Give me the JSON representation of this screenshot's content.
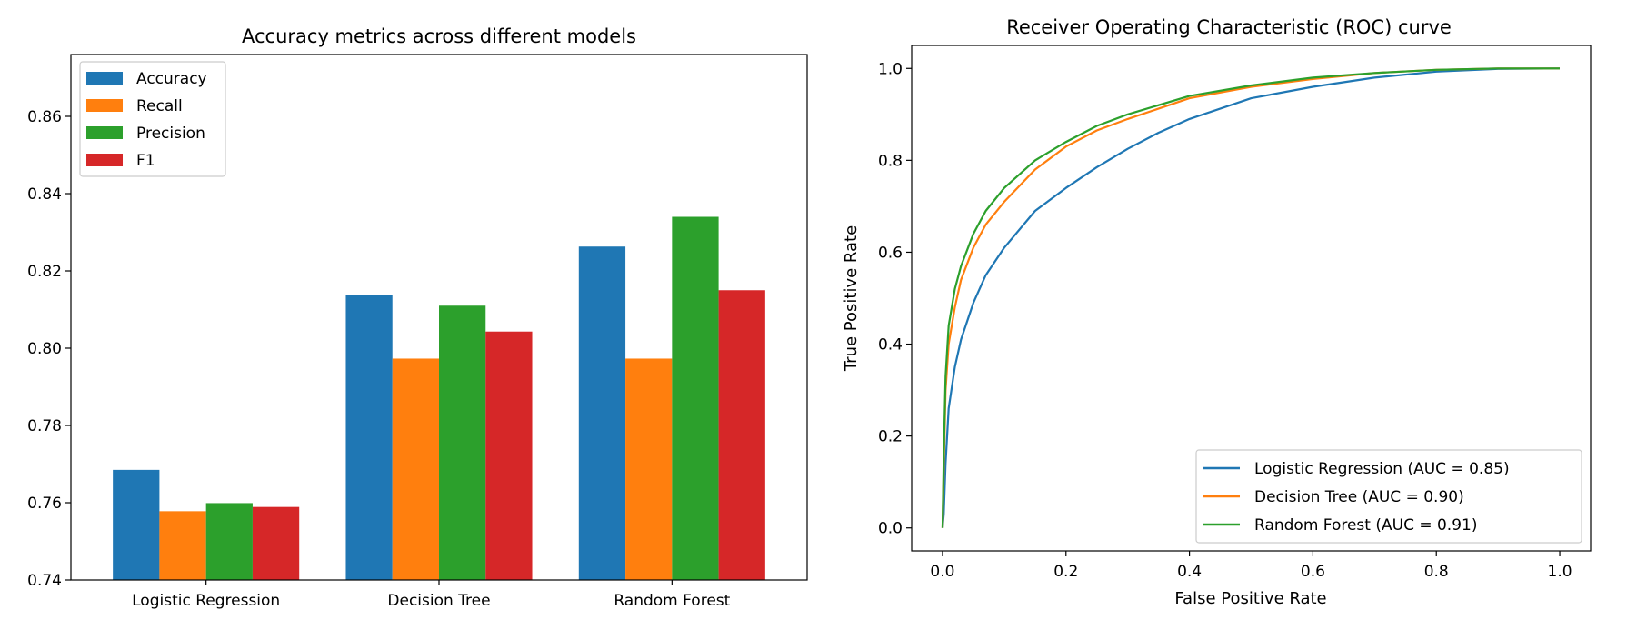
{
  "colors": {
    "blue": "#1f77b4",
    "orange": "#ff7f0e",
    "green": "#2ca02c",
    "red": "#d62728"
  },
  "chart_data": [
    {
      "type": "bar",
      "title": "Accuracy metrics across different models",
      "xlabel": "",
      "ylabel": "",
      "categories": [
        "Logistic Regression",
        "Decision Tree",
        "Random Forest"
      ],
      "ylim": [
        0.74,
        0.876
      ],
      "yticks": [
        "0.74",
        "0.76",
        "0.78",
        "0.80",
        "0.82",
        "0.84",
        "0.86"
      ],
      "grid": false,
      "legend_position": "top-left",
      "series": [
        {
          "name": "Accuracy",
          "color": "#1f77b4",
          "values": [
            0.7685,
            0.8137,
            0.8263
          ]
        },
        {
          "name": "Recall",
          "color": "#ff7f0e",
          "values": [
            0.7578,
            0.7973,
            0.7973
          ]
        },
        {
          "name": "Precision",
          "color": "#2ca02c",
          "values": [
            0.7599,
            0.811,
            0.834
          ]
        },
        {
          "name": "F1",
          "color": "#d62728",
          "values": [
            0.7589,
            0.8043,
            0.815
          ]
        }
      ]
    },
    {
      "type": "line",
      "title": "Receiver Operating Characteristic (ROC) curve",
      "xlabel": "False Positive Rate",
      "ylabel": "True Positive Rate",
      "xlim": [
        -0.05,
        1.05
      ],
      "ylim": [
        -0.05,
        1.05
      ],
      "xticks": [
        "0.0",
        "0.2",
        "0.4",
        "0.6",
        "0.8",
        "1.0"
      ],
      "yticks": [
        "0.0",
        "0.2",
        "0.4",
        "0.6",
        "0.8",
        "1.0"
      ],
      "grid": false,
      "legend_position": "bottom-right",
      "series": [
        {
          "name": "Logistic Regression (AUC = 0.85)",
          "color": "#1f77b4",
          "x": [
            0,
            0.002,
            0.005,
            0.01,
            0.02,
            0.03,
            0.05,
            0.07,
            0.1,
            0.15,
            0.2,
            0.25,
            0.3,
            0.35,
            0.4,
            0.5,
            0.6,
            0.7,
            0.8,
            0.9,
            1.0
          ],
          "y": [
            0,
            0.03,
            0.14,
            0.26,
            0.35,
            0.41,
            0.49,
            0.55,
            0.61,
            0.69,
            0.74,
            0.785,
            0.825,
            0.86,
            0.89,
            0.935,
            0.96,
            0.98,
            0.993,
            0.999,
            1.0
          ]
        },
        {
          "name": "Decision Tree (AUC = 0.90)",
          "color": "#ff7f0e",
          "x": [
            0,
            0.002,
            0.005,
            0.01,
            0.02,
            0.03,
            0.05,
            0.07,
            0.1,
            0.15,
            0.2,
            0.25,
            0.3,
            0.4,
            0.5,
            0.6,
            0.7,
            0.8,
            0.9,
            1.0
          ],
          "y": [
            0,
            0.13,
            0.3,
            0.4,
            0.48,
            0.54,
            0.61,
            0.66,
            0.71,
            0.78,
            0.83,
            0.865,
            0.89,
            0.935,
            0.96,
            0.977,
            0.99,
            0.997,
            1.0,
            1.0
          ]
        },
        {
          "name": "Random Forest (AUC = 0.91)",
          "color": "#2ca02c",
          "x": [
            0,
            0.002,
            0.005,
            0.01,
            0.02,
            0.03,
            0.05,
            0.07,
            0.1,
            0.15,
            0.2,
            0.25,
            0.3,
            0.4,
            0.5,
            0.6,
            0.7,
            0.8,
            0.9,
            1.0
          ],
          "y": [
            0,
            0.16,
            0.33,
            0.44,
            0.52,
            0.57,
            0.64,
            0.69,
            0.74,
            0.8,
            0.84,
            0.875,
            0.9,
            0.94,
            0.963,
            0.98,
            0.99,
            0.997,
            1.0,
            1.0
          ]
        }
      ]
    }
  ]
}
